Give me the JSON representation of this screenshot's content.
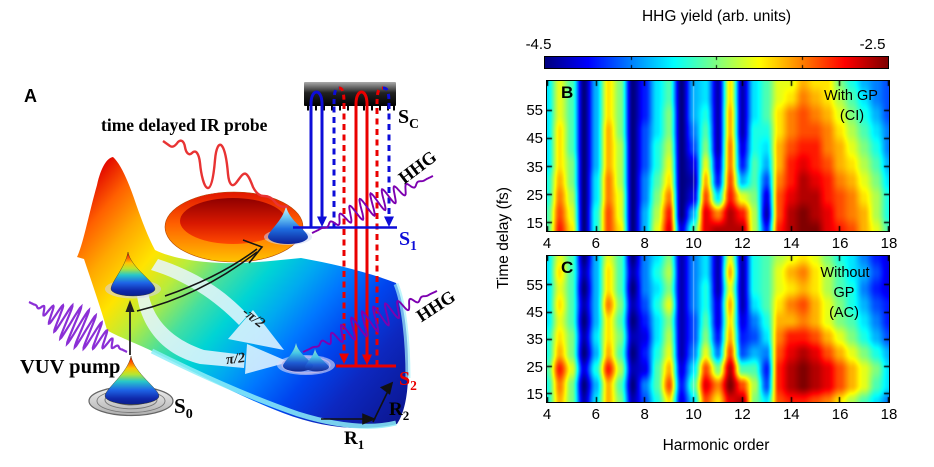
{
  "panel_a": {
    "label": "A",
    "ir_probe_label": "time delayed IR probe",
    "vuv_pump_label": "VUV pump",
    "hhg_label_upper": "HHG",
    "hhg_label_lower": "HHG",
    "state_ground": {
      "base": "S",
      "sub": "0"
    },
    "state_s1": {
      "base": "S",
      "sub": "1"
    },
    "state_s2": {
      "base": "S",
      "sub": "2"
    },
    "state_continuum": {
      "base": "S",
      "sub": "C"
    },
    "coord_r1": {
      "base": "R",
      "sub": "1"
    },
    "coord_r2": {
      "base": "R",
      "sub": "2"
    },
    "phase_upper": "-π/2",
    "phase_lower": "π/2",
    "colors": {
      "s1_blue": "#0d0dd8",
      "s2_red": "#ea0000",
      "pump_purple": "#8b2fd6",
      "hhg_purple": "#7d00b0",
      "probe_red": "#e83333"
    }
  },
  "colorbar": {
    "title": "HHG yield (arb. units)",
    "min_label": "-4.5",
    "max_label": "-2.5",
    "tick_values": [
      -4.0,
      -3.5,
      -3.0
    ]
  },
  "panels": {
    "b": {
      "label": "B",
      "annotation_lines": [
        "With GP",
        "(CI)"
      ]
    },
    "c": {
      "label": "C",
      "annotation_lines": [
        "Without",
        "GP",
        "(AC)"
      ]
    }
  },
  "axes": {
    "xlabel": "Harmonic order",
    "ylabel": "Time delay (fs)",
    "xticks": [
      4,
      6,
      8,
      10,
      12,
      14,
      16,
      18
    ],
    "yticks": [
      15,
      25,
      35,
      45,
      55
    ],
    "x_range": [
      4,
      18
    ],
    "y_range": [
      12,
      65.5
    ]
  },
  "chart_data": [
    {
      "type": "heatmap",
      "panel": "B",
      "condition": "With GP (CI)",
      "xlabel": "Harmonic order",
      "ylabel": "Time delay (fs)",
      "x_range": [
        4,
        18
      ],
      "y_range": [
        12,
        65.5
      ],
      "xticks": [
        4,
        6,
        8,
        10,
        12,
        14,
        16,
        18
      ],
      "yticks": [
        15,
        25,
        35,
        45,
        55
      ],
      "value_label": "HHG yield (arb. units), log scale",
      "value_range": [
        -4.5,
        -2.5
      ],
      "colormap": "jet",
      "seam_x": 10,
      "x_grid": {
        "start": 4,
        "step": 0.5,
        "count": 29
      },
      "y_grid": {
        "count": 10,
        "order": "rows run uniformly from top y=65.5 fs to bottom y=12 fs"
      },
      "values": [
        [
          -3.8,
          -3.3,
          -3.6,
          -4.5,
          -3.9,
          -3.2,
          -3.5,
          -4.5,
          -4.2,
          -3.8,
          -3.6,
          -4.5,
          -3.9,
          -3.8,
          -4.4,
          -3.2,
          -4.4,
          -3.8,
          -3.6,
          -3.3,
          -3.3,
          -3.1,
          -3.2,
          -3.2,
          -3.5,
          -3.7,
          -3.9,
          -4.0,
          -4.1
        ],
        [
          -3.8,
          -3.3,
          -3.6,
          -4.5,
          -3.9,
          -3.2,
          -3.5,
          -4.5,
          -4.2,
          -3.8,
          -3.6,
          -4.5,
          -3.9,
          -3.8,
          -4.4,
          -3.2,
          -4.4,
          -3.8,
          -3.6,
          -3.3,
          -3.2,
          -3.0,
          -3.1,
          -3.2,
          -3.4,
          -3.6,
          -3.8,
          -4.0,
          -4.1
        ],
        [
          -3.8,
          -3.3,
          -3.6,
          -4.5,
          -3.9,
          -3.2,
          -3.5,
          -4.5,
          -4.2,
          -3.8,
          -3.5,
          -4.5,
          -3.9,
          -3.7,
          -4.4,
          -3.1,
          -4.4,
          -3.8,
          -3.6,
          -3.2,
          -3.0,
          -2.9,
          -3.0,
          -3.1,
          -3.3,
          -3.5,
          -3.7,
          -3.9,
          -4.1
        ],
        [
          -3.8,
          -3.2,
          -3.6,
          -4.5,
          -3.9,
          -3.1,
          -3.5,
          -4.5,
          -4.1,
          -3.8,
          -3.5,
          -4.5,
          -4.0,
          -3.6,
          -4.4,
          -3.1,
          -4.4,
          -3.7,
          -3.7,
          -3.2,
          -3.0,
          -2.9,
          -2.9,
          -3.0,
          -3.2,
          -3.4,
          -3.6,
          -3.8,
          -4.0
        ],
        [
          -3.8,
          -3.2,
          -3.6,
          -4.5,
          -3.9,
          -3.1,
          -3.4,
          -4.5,
          -4.1,
          -3.7,
          -3.4,
          -4.5,
          -4.1,
          -3.5,
          -4.4,
          -3.0,
          -4.3,
          -3.7,
          -3.8,
          -3.1,
          -2.9,
          -2.8,
          -2.8,
          -3.0,
          -3.1,
          -3.3,
          -3.5,
          -3.7,
          -4.0
        ],
        [
          -3.8,
          -3.2,
          -3.5,
          -4.5,
          -3.9,
          -3.1,
          -3.4,
          -4.5,
          -4.1,
          -3.7,
          -3.3,
          -4.5,
          -4.3,
          -3.3,
          -4.3,
          -3.0,
          -4.2,
          -3.6,
          -3.9,
          -3.1,
          -2.8,
          -2.7,
          -2.8,
          -2.9,
          -3.1,
          -3.2,
          -3.4,
          -3.6,
          -3.9
        ],
        [
          -3.7,
          -3.1,
          -3.5,
          -4.5,
          -3.8,
          -3.0,
          -3.4,
          -4.5,
          -4.0,
          -3.6,
          -3.2,
          -4.5,
          -4.4,
          -3.1,
          -4.2,
          -2.9,
          -3.9,
          -3.6,
          -4.1,
          -3.0,
          -2.8,
          -2.6,
          -2.7,
          -2.8,
          -3.0,
          -3.1,
          -3.3,
          -3.5,
          -3.8
        ],
        [
          -3.7,
          -3.0,
          -3.4,
          -4.5,
          -3.8,
          -3.0,
          -3.3,
          -4.5,
          -4.0,
          -3.5,
          -3.0,
          -4.5,
          -4.3,
          -2.9,
          -3.8,
          -2.8,
          -3.3,
          -3.5,
          -4.3,
          -2.9,
          -2.7,
          -2.6,
          -2.6,
          -2.8,
          -2.9,
          -3.0,
          -3.2,
          -3.4,
          -3.7
        ],
        [
          -3.6,
          -2.9,
          -3.3,
          -4.5,
          -3.7,
          -2.9,
          -3.3,
          -4.5,
          -3.9,
          -3.4,
          -2.8,
          -4.5,
          -3.9,
          -2.7,
          -3.0,
          -2.6,
          -2.8,
          -3.4,
          -4.4,
          -2.9,
          -2.6,
          -2.5,
          -2.6,
          -2.7,
          -2.9,
          -3.0,
          -3.1,
          -3.4,
          -3.7
        ],
        [
          -3.6,
          -2.8,
          -3.2,
          -4.5,
          -3.7,
          -2.9,
          -3.2,
          -4.5,
          -3.9,
          -3.3,
          -2.7,
          -4.3,
          -3.6,
          -2.7,
          -2.6,
          -2.6,
          -2.6,
          -3.4,
          -4.2,
          -2.8,
          -2.6,
          -2.5,
          -2.5,
          -2.7,
          -2.8,
          -2.9,
          -3.1,
          -3.3,
          -3.6
        ]
      ]
    },
    {
      "type": "heatmap",
      "panel": "C",
      "condition": "Without GP (AC)",
      "xlabel": "Harmonic order",
      "ylabel": "Time delay (fs)",
      "x_range": [
        4,
        18
      ],
      "y_range": [
        12,
        65.5
      ],
      "xticks": [
        4,
        6,
        8,
        10,
        12,
        14,
        16,
        18
      ],
      "yticks": [
        15,
        25,
        35,
        45,
        55
      ],
      "value_label": "HHG yield (arb. units), log scale",
      "value_range": [
        -4.5,
        -2.5
      ],
      "colormap": "jet",
      "seam_x": 10,
      "x_grid": {
        "start": 4,
        "step": 0.5,
        "count": 29
      },
      "y_grid": {
        "count": 10,
        "order": "rows run uniformly from top y=65.5 fs to bottom y=12 fs"
      },
      "values": [
        [
          -3.8,
          -3.3,
          -3.6,
          -4.5,
          -3.9,
          -3.3,
          -3.6,
          -4.5,
          -4.0,
          -3.8,
          -3.5,
          -4.4,
          -4.0,
          -3.8,
          -4.4,
          -3.3,
          -4.4,
          -3.7,
          -3.6,
          -3.4,
          -3.3,
          -3.2,
          -3.3,
          -3.5,
          -3.7,
          -3.8,
          -4.0,
          -4.2,
          -4.3
        ],
        [
          -3.8,
          -3.2,
          -3.6,
          -4.4,
          -3.9,
          -3.2,
          -3.6,
          -4.4,
          -4.0,
          -3.7,
          -3.4,
          -4.4,
          -4.0,
          -3.8,
          -4.4,
          -3.1,
          -4.4,
          -3.7,
          -3.6,
          -3.3,
          -3.1,
          -3.0,
          -3.2,
          -3.4,
          -3.6,
          -3.8,
          -3.9,
          -4.1,
          -4.3
        ],
        [
          -3.8,
          -3.3,
          -3.6,
          -4.5,
          -3.9,
          -3.2,
          -3.6,
          -4.5,
          -4.0,
          -3.8,
          -3.5,
          -4.4,
          -4.0,
          -3.7,
          -4.4,
          -3.3,
          -4.4,
          -3.7,
          -3.6,
          -3.3,
          -3.2,
          -3.1,
          -3.2,
          -3.4,
          -3.6,
          -3.7,
          -4.0,
          -4.2,
          -4.3
        ],
        [
          -3.8,
          -3.2,
          -3.6,
          -4.4,
          -3.9,
          -3.0,
          -3.5,
          -4.4,
          -4.1,
          -3.7,
          -3.3,
          -4.4,
          -4.0,
          -3.7,
          -4.3,
          -3.1,
          -4.4,
          -3.8,
          -3.6,
          -3.2,
          -3.0,
          -2.9,
          -3.1,
          -3.3,
          -3.5,
          -3.7,
          -3.9,
          -4.1,
          -4.2
        ],
        [
          -3.8,
          -3.3,
          -3.6,
          -4.5,
          -3.9,
          -3.2,
          -3.6,
          -4.5,
          -4.2,
          -3.8,
          -3.5,
          -4.4,
          -4.1,
          -3.6,
          -4.3,
          -3.2,
          -4.3,
          -4.0,
          -3.7,
          -3.1,
          -3.1,
          -3.0,
          -3.1,
          -3.3,
          -3.5,
          -3.6,
          -3.8,
          -4.0,
          -4.2
        ],
        [
          -3.7,
          -3.2,
          -3.5,
          -4.4,
          -3.8,
          -3.2,
          -3.5,
          -4.4,
          -4.3,
          -3.8,
          -3.4,
          -4.4,
          -4.1,
          -3.5,
          -4.2,
          -3.1,
          -4.2,
          -4.1,
          -3.8,
          -3.0,
          -2.8,
          -2.8,
          -2.9,
          -3.1,
          -3.3,
          -3.5,
          -3.7,
          -3.9,
          -4.1
        ],
        [
          -3.7,
          -3.1,
          -3.5,
          -4.5,
          -3.9,
          -3.1,
          -3.6,
          -4.5,
          -4.2,
          -3.7,
          -3.3,
          -4.4,
          -4.0,
          -3.3,
          -4.0,
          -2.9,
          -4.1,
          -3.9,
          -4.0,
          -2.9,
          -2.7,
          -2.6,
          -2.7,
          -2.9,
          -3.1,
          -3.3,
          -3.5,
          -3.7,
          -3.9
        ],
        [
          -3.6,
          -2.8,
          -3.3,
          -4.3,
          -3.7,
          -2.8,
          -3.4,
          -4.4,
          -4.3,
          -3.6,
          -3.1,
          -4.3,
          -3.8,
          -2.9,
          -3.5,
          -2.6,
          -3.6,
          -3.6,
          -4.2,
          -2.8,
          -2.6,
          -2.5,
          -2.6,
          -2.7,
          -2.9,
          -3.1,
          -3.3,
          -3.5,
          -3.8
        ],
        [
          -3.7,
          -3.0,
          -3.5,
          -4.5,
          -3.9,
          -3.1,
          -3.6,
          -4.5,
          -4.0,
          -3.6,
          -2.9,
          -4.2,
          -3.6,
          -2.7,
          -3.0,
          -2.5,
          -2.9,
          -3.4,
          -4.1,
          -2.8,
          -2.6,
          -2.5,
          -2.6,
          -2.7,
          -2.9,
          -3.1,
          -3.3,
          -3.6,
          -3.8
        ],
        [
          -3.7,
          -3.1,
          -3.5,
          -4.4,
          -3.8,
          -3.1,
          -3.5,
          -4.4,
          -4.1,
          -3.7,
          -3.2,
          -4.3,
          -3.8,
          -2.9,
          -3.2,
          -2.7,
          -2.6,
          -3.5,
          -3.8,
          -2.9,
          -2.8,
          -2.8,
          -2.9,
          -3.0,
          -3.2,
          -3.4,
          -3.6,
          -3.8,
          -4.0
        ]
      ]
    }
  ]
}
